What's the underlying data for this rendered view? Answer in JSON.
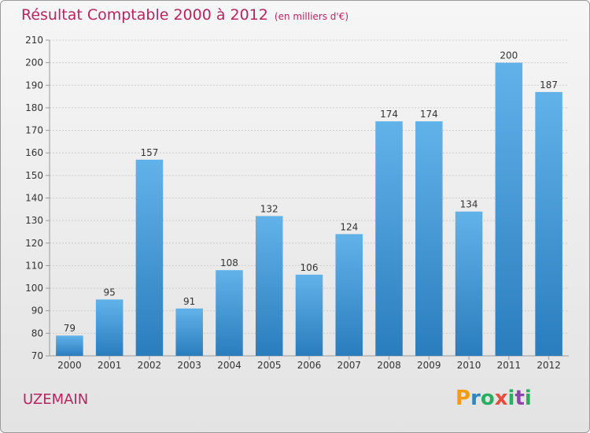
{
  "header": {
    "title": "Résultat Comptable 2000 à 2012",
    "unit": "(en milliers d'€)"
  },
  "commune": "UZEMAIN",
  "brand": {
    "letters": [
      "P",
      "r",
      "o",
      "x",
      "i",
      "t",
      "i"
    ],
    "colors": [
      "#f39c12",
      "#2e86c1",
      "#27ae60",
      "#e74c3c",
      "#27ae60",
      "#8e44ad",
      "#27ae60"
    ]
  },
  "colors": {
    "bar_light": "#62b2ea",
    "bar_dark": "#2a7dbd",
    "axis": "#999999",
    "grid": "#cccccc",
    "title": "#b5265f"
  },
  "chart_data": {
    "type": "bar",
    "title": "Résultat Comptable 2000 à 2012",
    "categories": [
      "2000",
      "2001",
      "2002",
      "2003",
      "2004",
      "2005",
      "2006",
      "2007",
      "2008",
      "2009",
      "2010",
      "2011",
      "2012"
    ],
    "values": [
      79,
      95,
      157,
      91,
      108,
      132,
      106,
      124,
      174,
      174,
      134,
      200,
      187
    ],
    "ylim": [
      70,
      210
    ],
    "yticks": [
      70,
      80,
      90,
      100,
      110,
      120,
      130,
      140,
      150,
      160,
      170,
      180,
      190,
      200,
      210
    ],
    "grid": true,
    "data_labels": true
  }
}
